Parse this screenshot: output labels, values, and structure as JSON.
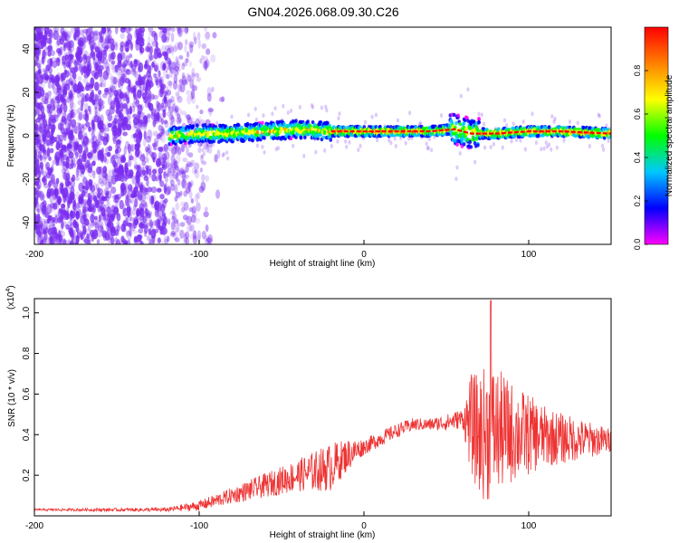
{
  "title": "GN04.2026.068.09.30.C26",
  "colors": {
    "signal": "#ff0000",
    "snr_line": "#ee3333",
    "noise": "#7a2cf0",
    "axis": "#000000",
    "colormap": [
      "#ff00ff",
      "#0000ff",
      "#00c8ff",
      "#00ff00",
      "#ffff00",
      "#ff8000",
      "#ff0000"
    ]
  },
  "chart_data": [
    {
      "type": "heatmap",
      "name": "spectrogram",
      "xlabel": "Height of straight line (km)",
      "ylabel": "Frequency (Hz)",
      "xlim": [
        -200,
        150
      ],
      "ylim": [
        -50,
        50
      ],
      "xticks": [
        -200,
        -100,
        0,
        100
      ],
      "yticks": [
        -40,
        -20,
        0,
        20,
        40
      ],
      "xtick_labels": [
        "-200",
        "-100",
        "0",
        "100"
      ],
      "ytick_labels": [
        "-40",
        "-20",
        "0",
        "20",
        "40"
      ],
      "colorbar": {
        "label": "Normalized spectral amplitude",
        "range": [
          0,
          1
        ],
        "ticks": [
          0.0,
          0.2,
          0.4,
          0.6,
          0.8
        ],
        "tick_labels": [
          "0.0",
          "0.2",
          "0.4",
          "0.6",
          "0.8"
        ]
      },
      "noise_region_x": [
        -200,
        -95
      ],
      "signal_track": {
        "start_x": -118,
        "points": [
          [
            -118,
            0
          ],
          [
            -100,
            1
          ],
          [
            -80,
            1
          ],
          [
            -60,
            2
          ],
          [
            -40,
            3
          ],
          [
            -20,
            2
          ],
          [
            0,
            2
          ],
          [
            20,
            2
          ],
          [
            40,
            2
          ],
          [
            55,
            3
          ],
          [
            65,
            1
          ],
          [
            80,
            1
          ],
          [
            100,
            2
          ],
          [
            120,
            2
          ],
          [
            150,
            1
          ]
        ]
      }
    },
    {
      "type": "line",
      "name": "snr",
      "xlabel": "Height of straight line (km)",
      "ylabel": "SNR (10 * v/v)",
      "y_scale_label": "(x10",
      "y_scale_exp": "4",
      "y_scale_close": ")",
      "xlim": [
        -200,
        150
      ],
      "ylim": [
        0,
        1.07
      ],
      "xticks": [
        -200,
        -100,
        0,
        100
      ],
      "yticks": [
        0.2,
        0.4,
        0.6,
        0.8,
        1.0
      ],
      "xtick_labels": [
        "-200",
        "-100",
        "0",
        "100"
      ],
      "ytick_labels": [
        "0.2",
        "0.4",
        "0.6",
        "0.8",
        "1.0"
      ],
      "envelope": [
        [
          -200,
          0.03
        ],
        [
          -120,
          0.03
        ],
        [
          -100,
          0.05
        ],
        [
          -80,
          0.1
        ],
        [
          -60,
          0.15
        ],
        [
          -40,
          0.2
        ],
        [
          -20,
          0.24
        ],
        [
          -10,
          0.3
        ],
        [
          0,
          0.34
        ],
        [
          10,
          0.38
        ],
        [
          20,
          0.42
        ],
        [
          30,
          0.45
        ],
        [
          40,
          0.45
        ],
        [
          50,
          0.46
        ],
        [
          60,
          0.48
        ],
        [
          65,
          0.45
        ],
        [
          70,
          0.4
        ],
        [
          80,
          0.42
        ],
        [
          100,
          0.4
        ],
        [
          120,
          0.38
        ],
        [
          150,
          0.37
        ]
      ],
      "fluct_amp": [
        [
          -200,
          0.005
        ],
        [
          -120,
          0.01
        ],
        [
          -80,
          0.04
        ],
        [
          -40,
          0.08
        ],
        [
          -20,
          0.12
        ],
        [
          0,
          0.04
        ],
        [
          40,
          0.03
        ],
        [
          60,
          0.05
        ],
        [
          65,
          0.25
        ],
        [
          75,
          0.35
        ],
        [
          90,
          0.25
        ],
        [
          110,
          0.15
        ],
        [
          150,
          0.06
        ]
      ],
      "peak": [
        77,
        1.06
      ]
    }
  ]
}
